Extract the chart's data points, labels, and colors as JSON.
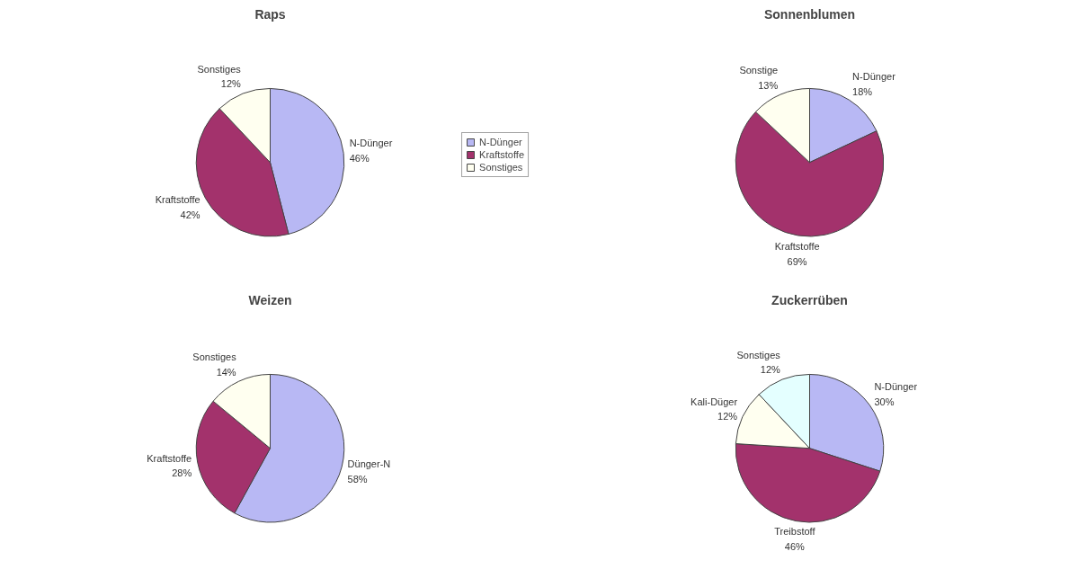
{
  "chart_data": [
    {
      "type": "pie",
      "title": "Raps",
      "categories": [
        "N-Dünger",
        "Kraftstoffe",
        "Sonstiges"
      ],
      "values": [
        46,
        42,
        12
      ],
      "colors": [
        "#b8b8f4",
        "#a3326c",
        "#fffff0"
      ],
      "value_labels": [
        "46%",
        "42%",
        "12%"
      ],
      "legend": "right"
    },
    {
      "type": "pie",
      "title": "Sonnenblumen",
      "categories": [
        "N-Dünger",
        "Kraftstoffe",
        "Sonstige"
      ],
      "values": [
        18,
        69,
        13
      ],
      "colors": [
        "#b8b8f4",
        "#a3326c",
        "#fffff0"
      ],
      "value_labels": [
        "18%",
        "69%",
        "13%"
      ]
    },
    {
      "type": "pie",
      "title": "Weizen",
      "categories": [
        "Dünger-N",
        "Kraftstoffe",
        "Sonstiges"
      ],
      "values": [
        58,
        28,
        14
      ],
      "colors": [
        "#b8b8f4",
        "#a3326c",
        "#fffff0"
      ],
      "value_labels": [
        "58%",
        "28%",
        "14%"
      ]
    },
    {
      "type": "pie",
      "title": "Zuckerrüben",
      "categories": [
        "N-Dünger",
        "Treibstoff",
        "Kali-Düger",
        "Sonstiges"
      ],
      "values": [
        30,
        46,
        12,
        12
      ],
      "colors": [
        "#b8b8f4",
        "#a3326c",
        "#fffff0",
        "#e4ffff"
      ],
      "value_labels": [
        "30%",
        "46%",
        "12%",
        "12%"
      ]
    }
  ]
}
